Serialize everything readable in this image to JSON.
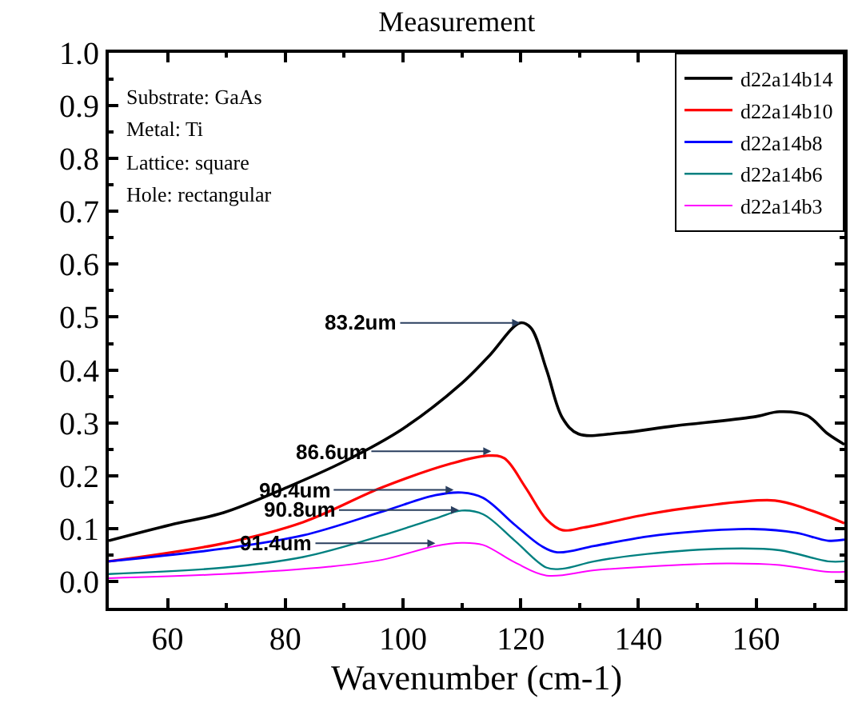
{
  "chart_data": {
    "type": "line",
    "title": "Measurement",
    "xlabel": "Wavenumber (cm-1)",
    "xlim": [
      50,
      175
    ],
    "xticks": [
      60,
      80,
      100,
      120,
      140,
      160
    ],
    "ylim": [
      -0.05,
      1.0
    ],
    "yticks": [
      {
        "value": 0,
        "label": "0.0"
      },
      0.1,
      0.2,
      0.3,
      0.4,
      0.5,
      0.6,
      0.7,
      0.8,
      0.9,
      {
        "value": 1,
        "label": "1.0"
      }
    ],
    "legend": "top right",
    "line_style": "solid",
    "marker": "none",
    "annotations": [
      "Substrate: GaAs",
      "Metal: Ti",
      "Lattice: square",
      "Hole: rectangular",
      {
        "text": "83.2um",
        "x": 119.9,
        "y": 0.489
      },
      {
        "text": "86.6um",
        "x": 115,
        "y": 0.246
      },
      {
        "text": "90.4um",
        "x": 108.6,
        "y": 0.173
      },
      {
        "text": "90.8um",
        "x": 109.5,
        "y": 0.135
      },
      {
        "text": "91.4um",
        "x": 105.5,
        "y": 0.072
      }
    ],
    "series": [
      {
        "name": "d22a14b14",
        "color": "#000000",
        "x": [
          50,
          60.5,
          69.5,
          80.3,
          90.2,
          100,
          110,
          114.5,
          119.9,
          121.7,
          124.4,
          127.1,
          129.8,
          137,
          146,
          159.5,
          164,
          168.6,
          172.2,
          175
        ],
        "values": [
          0.077,
          0.107,
          0.13,
          0.178,
          0.228,
          0.289,
          0.375,
          0.425,
          0.489,
          0.48,
          0.4,
          0.309,
          0.279,
          0.281,
          0.294,
          0.311,
          0.321,
          0.314,
          0.279,
          0.259
        ]
      },
      {
        "name": "d22a14b10",
        "color": "#ff0000",
        "x": [
          50,
          69.5,
          83,
          96.5,
          108.2,
          114.5,
          117.2,
          120.8,
          124.4,
          127.1,
          130.7,
          141.5,
          150.5,
          163.2,
          168.6,
          175
        ],
        "values": [
          0.038,
          0.072,
          0.112,
          0.178,
          0.223,
          0.238,
          0.233,
          0.178,
          0.117,
          0.097,
          0.102,
          0.127,
          0.142,
          0.153,
          0.137,
          0.11
        ]
      },
      {
        "name": "d22a14b8",
        "color": "#0000ff",
        "x": [
          50,
          69.5,
          83,
          96.5,
          105.5,
          110,
          113.6,
          119,
          123.5,
          126.2,
          132.5,
          141.5,
          150.5,
          159.5,
          166.8,
          172.2,
          175
        ],
        "values": [
          0.038,
          0.062,
          0.087,
          0.132,
          0.163,
          0.168,
          0.158,
          0.107,
          0.067,
          0.055,
          0.067,
          0.085,
          0.095,
          0.099,
          0.092,
          0.077,
          0.079
        ]
      },
      {
        "name": "d22a14b6",
        "color": "#008080",
        "x": [
          50,
          69.5,
          83,
          96.5,
          105.5,
          110,
          113.6,
          119,
          124.4,
          127.1,
          132.5,
          141.5,
          155,
          164,
          172.2,
          175
        ],
        "values": [
          0.014,
          0.026,
          0.046,
          0.087,
          0.119,
          0.134,
          0.127,
          0.077,
          0.026,
          0.024,
          0.038,
          0.052,
          0.062,
          0.059,
          0.038,
          0.038
        ]
      },
      {
        "name": "d22a14b3",
        "color": "#ff00ff",
        "x": [
          50,
          69.5,
          87.5,
          96.5,
          105.5,
          110,
          113.6,
          119,
          124.4,
          132.5,
          141.5,
          155,
          164,
          172.2,
          175
        ],
        "values": [
          0.006,
          0.014,
          0.028,
          0.041,
          0.067,
          0.073,
          0.069,
          0.036,
          0.011,
          0.021,
          0.028,
          0.034,
          0.031,
          0.018,
          0.018
        ]
      }
    ]
  }
}
